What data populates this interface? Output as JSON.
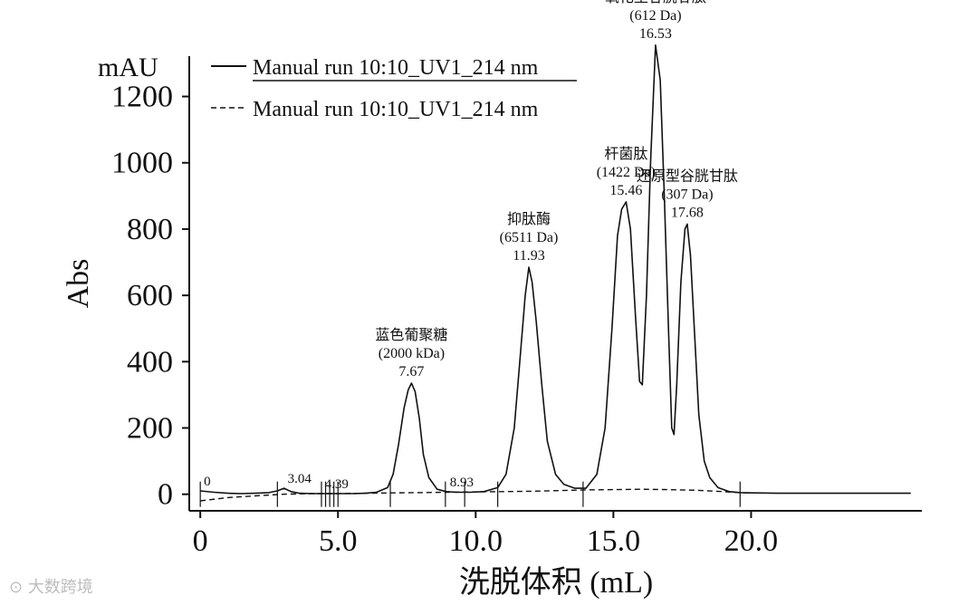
{
  "chart_data": {
    "type": "line",
    "y_unit": "mAU",
    "ylabel": "Abs",
    "xlabel": "洗脱体积 (mL)",
    "xlim": [
      -0.4,
      26.2
    ],
    "ylim": [
      -50,
      1360
    ],
    "x_ticks": [
      "0",
      "5.0",
      "10.0",
      "15.0",
      "20.0"
    ],
    "x_tick_values": [
      0,
      5,
      10,
      15,
      20
    ],
    "y_ticks": [
      "0",
      "200",
      "400",
      "600",
      "800",
      "1000",
      "1200"
    ],
    "y_tick_values": [
      0,
      200,
      400,
      600,
      800,
      1000,
      1200
    ],
    "legend": [
      {
        "label": "Manual run 10:10_UV1_214 nm",
        "style": "solid"
      },
      {
        "label": "Manual run 10:10_UV1_214 nm",
        "style": "dashed"
      }
    ],
    "series": [
      {
        "name": "Manual run 10:10_UV1_214 nm",
        "style": "solid",
        "x": [
          0,
          0.5,
          1,
          1.5,
          2,
          2.5,
          2.8,
          3.04,
          3.3,
          3.6,
          4,
          4.39,
          4.8,
          5.2,
          5.6,
          6,
          6.4,
          6.8,
          7.0,
          7.2,
          7.4,
          7.55,
          7.67,
          7.8,
          7.95,
          8.1,
          8.3,
          8.6,
          8.93,
          9.3,
          9.8,
          10.3,
          10.8,
          11.1,
          11.4,
          11.6,
          11.8,
          11.93,
          12.05,
          12.2,
          12.4,
          12.6,
          12.9,
          13.2,
          13.6,
          14.0,
          14.4,
          14.7,
          14.95,
          15.15,
          15.3,
          15.46,
          15.62,
          15.8,
          15.95,
          16.05,
          16.2,
          16.35,
          16.53,
          16.7,
          16.85,
          17.0,
          17.12,
          17.2,
          17.3,
          17.45,
          17.6,
          17.68,
          17.8,
          17.95,
          18.1,
          18.3,
          18.5,
          18.8,
          19.2,
          19.6,
          20,
          21,
          22,
          23,
          24,
          25,
          25.8
        ],
        "y": [
          10,
          6,
          3,
          2,
          3,
          5,
          10,
          18,
          8,
          3,
          2,
          2,
          2,
          2,
          2,
          3,
          6,
          20,
          60,
          150,
          260,
          315,
          335,
          310,
          230,
          120,
          50,
          15,
          8,
          6,
          6,
          8,
          20,
          60,
          200,
          400,
          600,
          685,
          640,
          520,
          330,
          160,
          60,
          30,
          18,
          18,
          60,
          200,
          500,
          780,
          860,
          882,
          800,
          540,
          340,
          330,
          600,
          1000,
          1355,
          1250,
          900,
          500,
          200,
          180,
          330,
          640,
          800,
          815,
          720,
          480,
          240,
          100,
          50,
          20,
          8,
          5,
          4,
          3,
          3,
          3,
          3,
          3,
          3
        ]
      },
      {
        "name": "Manual run 10:10_UV1_214 nm",
        "style": "dashed",
        "x": [
          0,
          1,
          2,
          3,
          4,
          5,
          6,
          7,
          8,
          9,
          10,
          11,
          12,
          13,
          14,
          15,
          16,
          17,
          18,
          19,
          20
        ],
        "y": [
          -20,
          -10,
          -5,
          0,
          2,
          2,
          3,
          4,
          5,
          6,
          7,
          8,
          9,
          11,
          13,
          14,
          15,
          14,
          12,
          8,
          3
        ]
      }
    ],
    "peaks": [
      {
        "name": "蓝色葡聚糖",
        "mw": "(2000 kDa)",
        "retention": "7.67",
        "x": 7.67,
        "y": 335
      },
      {
        "name": "抑肽酶",
        "mw": "(6511 Da)",
        "retention": "11.93",
        "x": 11.93,
        "y": 685
      },
      {
        "name": "杆菌肽",
        "mw": "(1422 Da)",
        "retention": "15.46",
        "x": 15.46,
        "y": 882
      },
      {
        "name": "氧化型谷胱甘肽",
        "mw": "(612 Da)",
        "retention": "16.53",
        "x": 16.53,
        "y": 1355
      },
      {
        "name": "还原型谷胱甘肽",
        "mw": "(307 Da)",
        "retention": "17.68",
        "x": 17.68,
        "y": 815
      }
    ],
    "minor_labels": [
      {
        "text": "0",
        "x": 0.0,
        "y": 10
      },
      {
        "text": "3.04",
        "x": 3.04,
        "y": 18
      },
      {
        "text": "4.39",
        "x": 4.39,
        "y": 2
      },
      {
        "text": "8.93",
        "x": 8.93,
        "y": 8
      }
    ],
    "fraction_marks": [
      0,
      2.8,
      4.4,
      4.55,
      4.7,
      4.85,
      5.0,
      6.9,
      8.9,
      9.6,
      10.8,
      13.9,
      19.6
    ]
  },
  "watermark": "大数跨境"
}
